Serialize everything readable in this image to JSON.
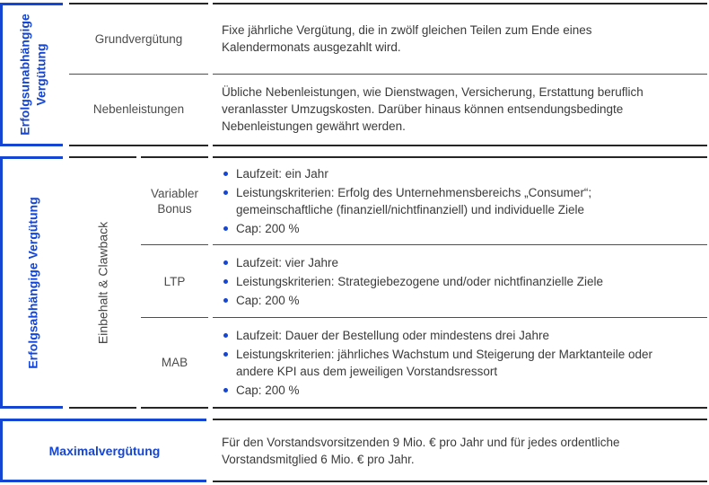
{
  "colors": {
    "accent_blue": "#1545d3",
    "body_text": "#3a3a3a",
    "label_text": "#4c4c4c",
    "section_border": "#262626",
    "row_separator": "#4e4e4e"
  },
  "sections": [
    {
      "label": "Erfolgsunabhängige Vergütung",
      "rows": [
        {
          "label": "Grundvergütung",
          "text": "Fixe jährliche Vergütung, die in zwölf gleichen Teilen zum Ende eines Kalendermonats ausgezahlt wird."
        },
        {
          "label": "Nebenleistungen",
          "text": "Übliche Nebenleistungen, wie Dienstwagen, Versicherung, Erstattung beruflich veranlasster Umzugskosten. Darüber hinaus können entsendungsbedingte Nebenleistungen gewährt werden."
        }
      ]
    },
    {
      "label": "Erfolgsabhängige Vergütung",
      "sublabel": "Einbehalt & Clawback",
      "rows": [
        {
          "label": "Variabler Bonus",
          "bullets": [
            "Laufzeit: ein Jahr",
            "Leistungskriterien: Erfolg des Unternehmensbereichs „Consumer“; gemeinschaftliche (finanziell/nichtfinanziell) und individuelle Ziele",
            "Cap: 200 %"
          ]
        },
        {
          "label": "LTP",
          "bullets": [
            "Laufzeit: vier Jahre",
            "Leistungskriterien: Strategiebezogene und/oder nichtfinanzielle Ziele",
            "Cap: 200 %"
          ]
        },
        {
          "label": "MAB",
          "bullets": [
            "Laufzeit: Dauer der Bestellung oder mindestens drei Jahre",
            "Leistungskriterien: jährliches Wachstum und Steigerung der Marktanteile oder andere KPI aus dem jeweiligen Vorstandsressort",
            "Cap: 200 %"
          ]
        }
      ]
    },
    {
      "label": "Maximalvergütung",
      "text": "Für den Vorstandsvorsitzenden 9 Mio. € pro Jahr und für jedes ordentliche Vorstandsmitglied 6 Mio. € pro Jahr."
    }
  ]
}
